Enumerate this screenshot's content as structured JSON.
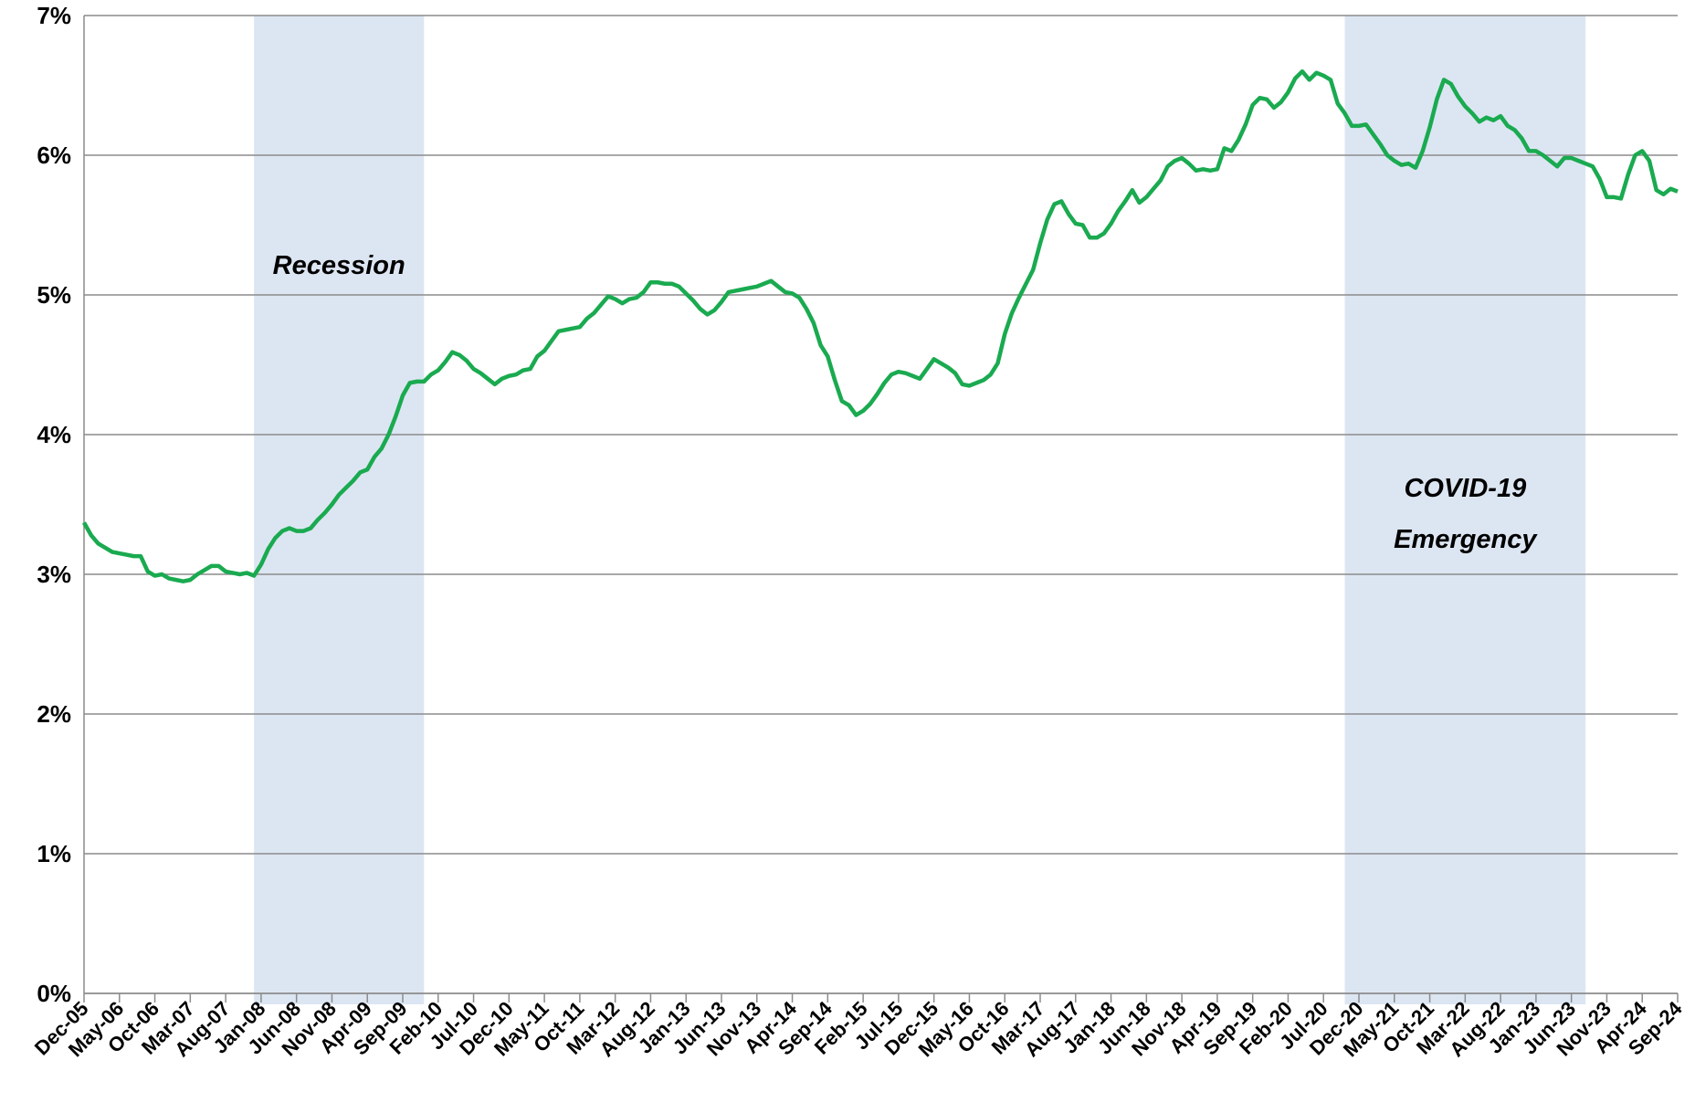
{
  "chart_data": {
    "type": "line",
    "categories": [
      "Dec-05",
      null,
      null,
      null,
      null,
      "May-06",
      null,
      null,
      null,
      null,
      "Oct-06",
      null,
      null,
      null,
      null,
      "Mar-07",
      null,
      null,
      null,
      null,
      "Aug-07",
      null,
      null,
      null,
      null,
      "Jan-08",
      null,
      null,
      null,
      null,
      "Jun-08",
      null,
      null,
      null,
      null,
      "Nov-08",
      null,
      null,
      null,
      null,
      "Apr-09",
      null,
      null,
      null,
      null,
      "Sep-09",
      null,
      null,
      null,
      null,
      "Feb-10",
      null,
      null,
      null,
      null,
      "Jul-10",
      null,
      null,
      null,
      null,
      "Dec-10",
      null,
      null,
      null,
      null,
      "May-11",
      null,
      null,
      null,
      null,
      "Oct-11",
      null,
      null,
      null,
      null,
      "Mar-12",
      null,
      null,
      null,
      null,
      "Aug-12",
      null,
      null,
      null,
      null,
      "Jan-13",
      null,
      null,
      null,
      null,
      "Jun-13",
      null,
      null,
      null,
      null,
      "Nov-13",
      null,
      null,
      null,
      null,
      "Apr-14",
      null,
      null,
      null,
      null,
      "Sep-14",
      null,
      null,
      null,
      null,
      "Feb-15",
      null,
      null,
      null,
      null,
      "Jul-15",
      null,
      null,
      null,
      null,
      "Dec-15",
      null,
      null,
      null,
      null,
      "May-16",
      null,
      null,
      null,
      null,
      "Oct-16",
      null,
      null,
      null,
      null,
      "Mar-17",
      null,
      null,
      null,
      null,
      "Aug-17",
      null,
      null,
      null,
      null,
      "Jan-18",
      null,
      null,
      null,
      null,
      "Jun-18",
      null,
      null,
      null,
      null,
      "Nov-18",
      null,
      null,
      null,
      null,
      "Apr-19",
      null,
      null,
      null,
      null,
      "Sep-19",
      null,
      null,
      null,
      null,
      "Feb-20",
      null,
      null,
      null,
      null,
      "Jul-20",
      null,
      null,
      null,
      null,
      "Dec-20",
      null,
      null,
      null,
      null,
      "May-21",
      null,
      null,
      null,
      null,
      "Oct-21",
      null,
      null,
      null,
      null,
      "Mar-22",
      null,
      null,
      null,
      null,
      "Aug-22",
      null,
      null,
      null,
      null,
      "Jan-23",
      null,
      null,
      null,
      null,
      "Jun-23",
      null,
      null,
      null,
      null,
      "Nov-23",
      null,
      null,
      null,
      null,
      "Apr-24",
      null,
      null,
      null,
      null,
      "Sep-24"
    ],
    "series": [
      {
        "color": "#1aaa50",
        "values": [
          3.37,
          3.28,
          3.22,
          3.19,
          3.16,
          3.15,
          3.14,
          3.13,
          3.13,
          3.02,
          2.99,
          3.0,
          2.97,
          2.96,
          2.95,
          2.96,
          3.0,
          3.03,
          3.06,
          3.06,
          3.02,
          3.01,
          3.0,
          3.01,
          2.99,
          3.07,
          3.18,
          3.26,
          3.31,
          3.33,
          3.31,
          3.31,
          3.33,
          3.39,
          3.44,
          3.5,
          3.57,
          3.62,
          3.67,
          3.73,
          3.75,
          3.84,
          3.9,
          4.0,
          4.13,
          4.28,
          4.37,
          4.38,
          4.38,
          4.43,
          4.46,
          4.52,
          4.59,
          4.57,
          4.53,
          4.47,
          4.44,
          4.4,
          4.36,
          4.4,
          4.42,
          4.43,
          4.46,
          4.47,
          4.56,
          4.6,
          4.67,
          4.74,
          4.75,
          4.76,
          4.77,
          4.83,
          4.87,
          4.93,
          4.99,
          4.97,
          4.94,
          4.97,
          4.98,
          5.02,
          5.09,
          5.09,
          5.08,
          5.08,
          5.06,
          5.01,
          4.96,
          4.9,
          4.86,
          4.89,
          4.95,
          5.02,
          5.03,
          5.04,
          5.05,
          5.06,
          5.08,
          5.1,
          5.06,
          5.02,
          5.01,
          4.98,
          4.9,
          4.8,
          4.64,
          4.56,
          4.39,
          4.24,
          4.21,
          4.14,
          4.17,
          4.22,
          4.29,
          4.37,
          4.43,
          4.45,
          4.44,
          4.42,
          4.4,
          4.47,
          4.54,
          4.51,
          4.48,
          4.44,
          4.36,
          4.35,
          4.37,
          4.39,
          4.43,
          4.51,
          4.72,
          4.87,
          4.98,
          5.08,
          5.18,
          5.37,
          5.54,
          5.65,
          5.67,
          5.58,
          5.51,
          5.5,
          5.41,
          5.41,
          5.44,
          5.51,
          5.6,
          5.67,
          5.75,
          5.66,
          5.7,
          5.76,
          5.82,
          5.92,
          5.96,
          5.98,
          5.94,
          5.89,
          5.9,
          5.89,
          5.9,
          6.05,
          6.03,
          6.11,
          6.22,
          6.36,
          6.41,
          6.4,
          6.34,
          6.38,
          6.45,
          6.55,
          6.6,
          6.54,
          6.59,
          6.57,
          6.54,
          6.37,
          6.3,
          6.21,
          6.21,
          6.22,
          6.15,
          6.08,
          6.0,
          5.96,
          5.93,
          5.94,
          5.91,
          6.03,
          6.2,
          6.4,
          6.54,
          6.51,
          6.42,
          6.35,
          6.3,
          6.24,
          6.27,
          6.25,
          6.28,
          6.21,
          6.18,
          6.12,
          6.03,
          6.03,
          6.0,
          5.96,
          5.92,
          5.98,
          5.98,
          5.96,
          5.94,
          5.92,
          5.83,
          5.7,
          5.7,
          5.69,
          5.86,
          6.0,
          6.03,
          5.96,
          5.75,
          5.72,
          5.76,
          5.74
        ]
      }
    ],
    "ylim": [
      0,
      7
    ],
    "yticks": [
      {
        "value": 0,
        "label": "0%"
      },
      {
        "value": 1,
        "label": "1%"
      },
      {
        "value": 2,
        "label": "2%"
      },
      {
        "value": 3,
        "label": "3%"
      },
      {
        "value": 4,
        "label": "4%"
      },
      {
        "value": 5,
        "label": "5%"
      },
      {
        "value": 6,
        "label": "6%"
      },
      {
        "value": 7,
        "label": "7%"
      }
    ],
    "grid": true,
    "shaded_periods": [
      {
        "label_lines": [
          "Recession"
        ],
        "from": "Dec-07",
        "to": "Dec-09",
        "color": "#dce6f2"
      },
      {
        "label_lines": [
          "COVID-19",
          "Emergency"
        ],
        "from": "Oct-20",
        "to": "Aug-23",
        "color": "#dce6f2"
      }
    ]
  }
}
